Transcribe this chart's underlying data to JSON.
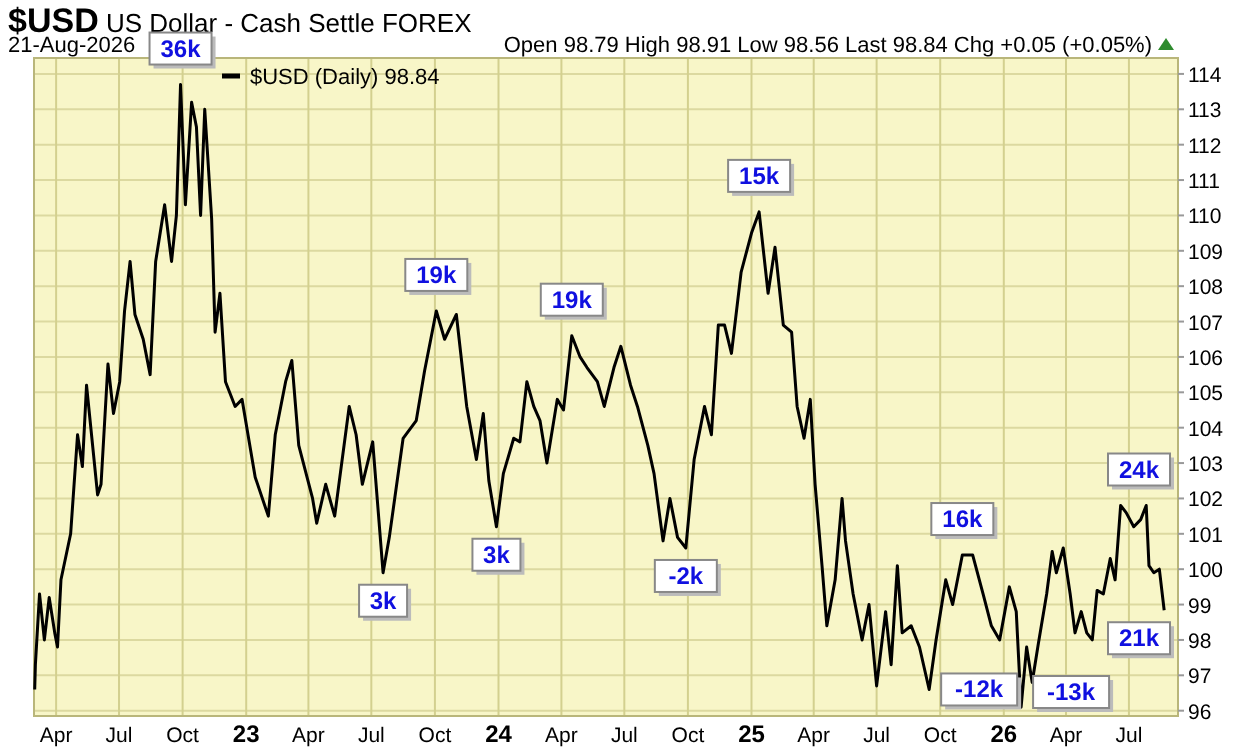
{
  "chart_data": {
    "type": "line",
    "title": "$USD US Dollar - Cash Settle FOREX",
    "subtitle": "21-Aug-2026",
    "annotations": [
      "Open 98.79 High 98.91 Low 98.56 Last 98.84 Chg +0.05 (+0.05%)",
      {
        "text": "36k",
        "x": "2022-09-28",
        "y": 113.7
      },
      {
        "text": "3k",
        "x": "2023-07-18",
        "y": 99.9
      },
      {
        "text": "19k",
        "x": "2023-10-03",
        "y": 107.3
      },
      {
        "text": "3k",
        "x": "2023-12-29",
        "y": 101.2
      },
      {
        "text": "19k",
        "x": "2024-04-16",
        "y": 106.6
      },
      {
        "text": "-2k",
        "x": "2024-09-28",
        "y": 100.6
      },
      {
        "text": "15k",
        "x": "2025-01-12",
        "y": 110.1
      },
      {
        "text": "-12k",
        "x": "2025-09-15",
        "y": 96.6
      },
      {
        "text": "16k",
        "x": "2025-11-02",
        "y": 100.4
      },
      {
        "text": "-13k",
        "x": "2026-01-26",
        "y": 96.1
      },
      {
        "text": "24k",
        "x": "2026-07-26",
        "y": 101.8
      },
      {
        "text": "21k",
        "x": "2026-08-21",
        "y": 98.84
      }
    ],
    "series": [
      {
        "name": "$USD (Daily) 98.84",
        "color": "#000000",
        "x": [
          "2022-03-01",
          "2022-03-02",
          "2022-03-08",
          "2022-03-15",
          "2022-03-22",
          "2022-03-30",
          "2022-04-03",
          "2022-04-08",
          "2022-04-22",
          "2022-05-02",
          "2022-05-09",
          "2022-05-15",
          "2022-05-31",
          "2022-06-05",
          "2022-06-15",
          "2022-06-23",
          "2022-07-02",
          "2022-07-09",
          "2022-07-17",
          "2022-07-24",
          "2022-08-05",
          "2022-08-15",
          "2022-08-23",
          "2022-09-05",
          "2022-09-15",
          "2022-09-22",
          "2022-09-28",
          "2022-10-05",
          "2022-10-14",
          "2022-10-21",
          "2022-10-27",
          "2022-11-02",
          "2022-11-12",
          "2022-11-17",
          "2022-11-24",
          "2022-12-02",
          "2022-12-16",
          "2022-12-26",
          "2023-01-14",
          "2023-02-02",
          "2023-02-12",
          "2023-02-27",
          "2023-03-08",
          "2023-03-18",
          "2023-04-07",
          "2023-04-13",
          "2023-04-26",
          "2023-05-09",
          "2023-05-30",
          "2023-06-09",
          "2023-06-18",
          "2023-07-03",
          "2023-07-18",
          "2023-07-27",
          "2023-08-16",
          "2023-09-04",
          "2023-09-16",
          "2023-10-03",
          "2023-10-15",
          "2023-11-01",
          "2023-11-16",
          "2023-11-30",
          "2023-12-10",
          "2023-12-18",
          "2023-12-29",
          "2024-01-08",
          "2024-01-23",
          "2024-02-01",
          "2024-02-11",
          "2024-02-21",
          "2024-03-01",
          "2024-03-11",
          "2024-03-26",
          "2024-04-04",
          "2024-04-16",
          "2024-04-28",
          "2024-05-08",
          "2024-05-23",
          "2024-06-02",
          "2024-06-16",
          "2024-06-26",
          "2024-07-10",
          "2024-07-20",
          "2024-08-04",
          "2024-08-13",
          "2024-08-26",
          "2024-09-05",
          "2024-09-16",
          "2024-09-28",
          "2024-10-10",
          "2024-10-25",
          "2024-11-04",
          "2024-11-14",
          "2024-11-23",
          "2024-12-03",
          "2024-12-17",
          "2025-01-01",
          "2025-01-12",
          "2025-01-25",
          "2025-02-04",
          "2025-02-16",
          "2025-02-28",
          "2025-03-08",
          "2025-03-18",
          "2025-03-27",
          "2025-04-03",
          "2025-04-13",
          "2025-04-20",
          "2025-05-02",
          "2025-05-12",
          "2025-05-17",
          "2025-05-28",
          "2025-06-10",
          "2025-06-20",
          "2025-07-01",
          "2025-07-14",
          "2025-07-22",
          "2025-07-31",
          "2025-08-07",
          "2025-08-20",
          "2025-09-01",
          "2025-09-15",
          "2025-09-25",
          "2025-10-09",
          "2025-10-19",
          "2025-11-02",
          "2025-11-17",
          "2025-12-02",
          "2025-12-14",
          "2025-12-26",
          "2026-01-09",
          "2026-01-19",
          "2026-01-26",
          "2026-02-03",
          "2026-02-11",
          "2026-02-20",
          "2026-03-04",
          "2026-03-12",
          "2026-03-18",
          "2026-03-28",
          "2026-04-07",
          "2026-04-14",
          "2026-04-23",
          "2026-05-01",
          "2026-05-09",
          "2026-05-16",
          "2026-05-25",
          "2026-06-04",
          "2026-06-11",
          "2026-06-19",
          "2026-06-27",
          "2026-07-08",
          "2026-07-18",
          "2026-07-26",
          "2026-07-30",
          "2026-08-06",
          "2026-08-14",
          "2026-08-21"
        ],
        "values": [
          96.6,
          97.3,
          99.3,
          98.0,
          99.2,
          98.2,
          97.8,
          99.7,
          101.0,
          103.8,
          102.9,
          105.2,
          102.1,
          102.4,
          105.8,
          104.4,
          105.3,
          107.3,
          108.7,
          107.2,
          106.5,
          105.5,
          108.7,
          110.3,
          108.7,
          110.0,
          113.7,
          110.3,
          113.2,
          112.5,
          110.0,
          113.0,
          109.9,
          106.7,
          107.8,
          105.3,
          104.6,
          104.8,
          102.6,
          101.5,
          103.8,
          105.3,
          105.9,
          103.5,
          102.0,
          101.3,
          102.4,
          101.5,
          104.6,
          103.8,
          102.4,
          103.6,
          99.9,
          100.9,
          103.7,
          104.2,
          105.6,
          107.3,
          106.5,
          107.2,
          104.6,
          103.1,
          104.4,
          102.5,
          101.2,
          102.7,
          103.7,
          103.6,
          105.3,
          104.6,
          104.2,
          103.0,
          104.8,
          104.5,
          106.6,
          106.0,
          105.7,
          105.3,
          104.6,
          105.7,
          106.3,
          105.2,
          104.6,
          103.5,
          102.7,
          100.8,
          102.0,
          100.9,
          100.6,
          103.1,
          104.6,
          103.8,
          106.9,
          106.9,
          106.1,
          108.4,
          109.5,
          110.1,
          107.8,
          109.1,
          106.9,
          106.7,
          104.6,
          103.7,
          104.8,
          102.4,
          100.1,
          98.4,
          99.7,
          102.0,
          100.8,
          99.3,
          98.0,
          99.0,
          96.7,
          98.8,
          97.3,
          100.1,
          98.2,
          98.4,
          97.8,
          96.6,
          98.0,
          99.7,
          99.0,
          100.4,
          100.4,
          99.3,
          98.4,
          98.0,
          99.5,
          98.8,
          96.1,
          97.8,
          96.8,
          97.9,
          99.3,
          100.5,
          99.9,
          100.6,
          99.3,
          98.2,
          98.8,
          98.2,
          98.0,
          99.4,
          99.3,
          100.3,
          99.7,
          101.8,
          101.6,
          101.2,
          101.4,
          101.8,
          100.1,
          99.9,
          100.0,
          98.84
        ]
      }
    ],
    "xlim": [
      "2022-02-28",
      "2026-09-10"
    ],
    "xticks": [
      {
        "value": "2022-04-01",
        "label": "Apr"
      },
      {
        "value": "2022-07-01",
        "label": "Jul"
      },
      {
        "value": "2022-10-01",
        "label": "Oct"
      },
      {
        "value": "2023-01-01",
        "label": "23"
      },
      {
        "value": "2023-04-01",
        "label": "Apr"
      },
      {
        "value": "2023-07-01",
        "label": "Jul"
      },
      {
        "value": "2023-10-01",
        "label": "Oct"
      },
      {
        "value": "2024-01-01",
        "label": "24"
      },
      {
        "value": "2024-04-01",
        "label": "Apr"
      },
      {
        "value": "2024-07-01",
        "label": "Jul"
      },
      {
        "value": "2024-10-01",
        "label": "Oct"
      },
      {
        "value": "2025-01-01",
        "label": "25"
      },
      {
        "value": "2025-04-01",
        "label": "Apr"
      },
      {
        "value": "2025-07-01",
        "label": "Jul"
      },
      {
        "value": "2025-10-01",
        "label": "Oct"
      },
      {
        "value": "2026-01-01",
        "label": "26"
      },
      {
        "value": "2026-04-01",
        "label": "Apr"
      },
      {
        "value": "2026-07-01",
        "label": "Jul"
      }
    ],
    "ylim": [
      95.85,
      114.45
    ],
    "yticks": [
      96,
      97,
      98,
      99,
      100,
      101,
      102,
      103,
      104,
      105,
      106,
      107,
      108,
      109,
      110,
      111,
      112,
      113,
      114
    ],
    "grid": true,
    "legend": "top left"
  }
}
